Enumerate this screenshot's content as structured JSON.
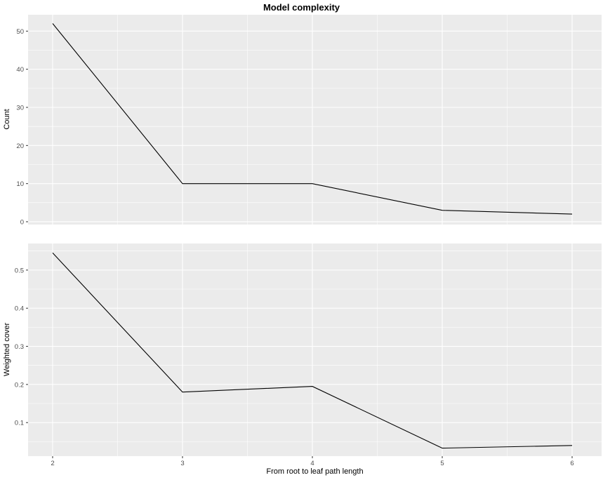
{
  "title": "Model complexity",
  "xlabel": "From root to leaf path length",
  "theme": {
    "panel_bg": "#ebebeb",
    "grid_major_color": "#ffffff",
    "grid_minor_color": "#ffffff",
    "grid_major_width": 1.1,
    "grid_minor_width": 0.55,
    "line_color": "#000000",
    "line_width": 1.1,
    "tick_color": "#333333",
    "tick_label_color": "#4d4d4d",
    "title_color": "#000000"
  },
  "x_axis": {
    "ticks": [
      2,
      3,
      4,
      5,
      6
    ],
    "tick_labels": [
      "2",
      "3",
      "4",
      "5",
      "6"
    ],
    "minor": [
      2.5,
      3.5,
      4.5,
      5.5
    ],
    "lim": [
      1.811,
      6.227
    ]
  },
  "chart_data": [
    {
      "type": "line",
      "title": "Model complexity",
      "ylabel": "Count",
      "xlabel": "From root to leaf path length",
      "x": [
        2,
        3,
        4,
        5,
        6
      ],
      "values": [
        52,
        10,
        10,
        3,
        2
      ],
      "ylim": [
        -0.74,
        54.3
      ],
      "yticks": [
        0,
        10,
        20,
        30,
        40,
        50
      ],
      "ytick_labels": [
        "0",
        "10",
        "20",
        "30",
        "40",
        "50"
      ],
      "yminor": [
        5,
        15,
        25,
        35,
        45
      ],
      "grid": true,
      "legend": "none",
      "show_x_axis": false
    },
    {
      "type": "line",
      "ylabel": "Weighted cover",
      "xlabel": "From root to leaf path length",
      "x": [
        2,
        3,
        4,
        5,
        6
      ],
      "values": [
        0.545,
        0.18,
        0.195,
        0.033,
        0.04
      ],
      "ylim": [
        0.012,
        0.5697
      ],
      "yticks": [
        0.1,
        0.2,
        0.3,
        0.4,
        0.5
      ],
      "ytick_labels": [
        "0.1",
        "0.2",
        "0.3",
        "0.4",
        "0.5"
      ],
      "yminor": [
        0.05,
        0.15,
        0.25,
        0.35,
        0.45,
        0.55
      ],
      "grid": true,
      "legend": "none",
      "show_x_axis": true
    }
  ]
}
